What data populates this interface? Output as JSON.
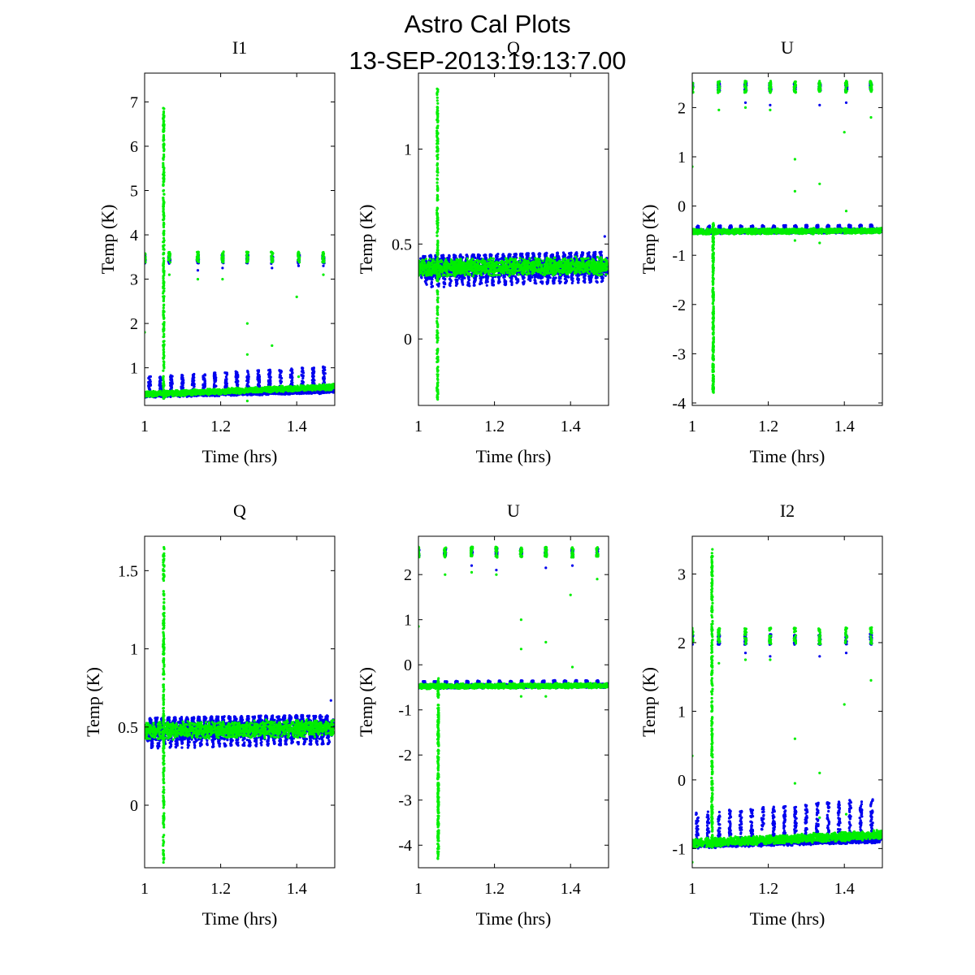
{
  "figure": {
    "title_line1": "Astro Cal Plots",
    "title_line2": "13-SEP-2013:19:13:7.00"
  },
  "colors": {
    "blue": "#0000ee",
    "green": "#00ee00",
    "axis": "#000000"
  },
  "chart_data": [
    {
      "type": "scatter",
      "title": "I1",
      "xlabel": "Time (hrs)",
      "ylabel": "Temp (K)",
      "xlim": [
        1.0,
        1.5
      ],
      "ylim": [
        0.15,
        7.65
      ],
      "xticks": [
        1,
        1.2,
        1.4
      ],
      "xtick_labels": [
        "1",
        "1.2",
        "1.4"
      ],
      "yticks": [
        1,
        2,
        3,
        4,
        5,
        6,
        7
      ],
      "ytick_labels": [
        "1",
        "2",
        "3",
        "4",
        "5",
        "6",
        "7"
      ],
      "legend": "none",
      "grid": false,
      "series": [
        {
          "color": "blue",
          "baseline": {
            "start": 0.38,
            "end": 0.48,
            "spread": 0.06
          },
          "bursts": {
            "start": 1.013,
            "interval": 0.0287,
            "count": 17,
            "height_start": 0.8,
            "height_end": 1.04
          },
          "cal_clusters": {
            "times": [
              1.0,
              1.065,
              1.14,
              1.205,
              1.27,
              1.335,
              1.405,
              1.47
            ],
            "level": 3.45,
            "spread": 0.1
          },
          "outliers": [
            [
              1.14,
              3.2
            ],
            [
              1.205,
              3.25
            ],
            [
              1.335,
              3.25
            ],
            [
              1.405,
              3.3
            ],
            [
              1.47,
              3.3
            ]
          ]
        },
        {
          "color": "green",
          "baseline": {
            "start": 0.4,
            "end": 0.57,
            "spread": 0.07
          },
          "spike": {
            "x": 1.05,
            "min": 0.3,
            "max": 6.9
          },
          "cal_clusters": {
            "times": [
              1.0,
              1.065,
              1.14,
              1.205,
              1.27,
              1.335,
              1.405,
              1.47
            ],
            "level": 3.5,
            "spread": 0.12
          },
          "outliers": [
            [
              1.0,
              1.8
            ],
            [
              1.065,
              3.1
            ],
            [
              1.14,
              3.0
            ],
            [
              1.205,
              3.0
            ],
            [
              1.27,
              2.0
            ],
            [
              1.27,
              1.3
            ],
            [
              1.335,
              1.5
            ],
            [
              1.4,
              2.6
            ],
            [
              1.405,
              0.8
            ],
            [
              1.27,
              0.25
            ],
            [
              1.47,
              3.1
            ]
          ]
        }
      ]
    },
    {
      "type": "scatter",
      "title": "Q",
      "xlabel": "Time (hrs)",
      "ylabel": "Temp (K)",
      "xlim": [
        1.0,
        1.5
      ],
      "ylim": [
        -0.35,
        1.4
      ],
      "xticks": [
        1,
        1.2,
        1.4
      ],
      "xtick_labels": [
        "1",
        "1.2",
        "1.4"
      ],
      "yticks": [
        0,
        0.5,
        1
      ],
      "ytick_labels": [
        "0",
        "0.5",
        "1"
      ],
      "legend": "none",
      "grid": false,
      "series": [
        {
          "color": "blue",
          "baseline": {
            "start": 0.37,
            "end": 0.38,
            "spread": 0.06
          },
          "bursts": {
            "start": 1.015,
            "interval": 0.016,
            "count": 30,
            "height_start": 0.44,
            "height_end": 0.46
          },
          "dips": {
            "start": 1.02,
            "interval": 0.016,
            "count": 30,
            "depth_start": 0.27,
            "depth_end": 0.3
          },
          "outliers": [
            [
              1.49,
              0.54
            ]
          ]
        },
        {
          "color": "green",
          "baseline": {
            "start": 0.375,
            "end": 0.385,
            "spread": 0.05
          },
          "spike": {
            "x": 1.05,
            "min": -0.33,
            "max": 1.33
          },
          "outliers": []
        }
      ]
    },
    {
      "type": "scatter",
      "title": "U",
      "xlabel": "Time (hrs)",
      "ylabel": "Temp (K)",
      "xlim": [
        1.0,
        1.5
      ],
      "ylim": [
        -4.05,
        2.7
      ],
      "xticks": [
        1,
        1.2,
        1.4
      ],
      "xtick_labels": [
        "1",
        "1.2",
        "1.4"
      ],
      "yticks": [
        -4,
        -3,
        -2,
        -1,
        0,
        1,
        2
      ],
      "ytick_labels": [
        "-4",
        "-3",
        "-2",
        "-1",
        "0",
        "1",
        "2"
      ],
      "legend": "none",
      "grid": false,
      "series": [
        {
          "color": "blue",
          "baseline": {
            "start": -0.52,
            "end": -0.5,
            "spread": 0.05
          },
          "bursts": {
            "start": 1.015,
            "interval": 0.0285,
            "count": 17,
            "height_start": -0.4,
            "height_end": -0.38
          },
          "cal_clusters": {
            "times": [
              1.0,
              1.07,
              1.14,
              1.205,
              1.27,
              1.335,
              1.405,
              1.47
            ],
            "level": 2.42,
            "spread": 0.08
          },
          "outliers": [
            [
              1.14,
              2.1
            ],
            [
              1.205,
              2.05
            ],
            [
              1.335,
              2.05
            ],
            [
              1.405,
              2.1
            ]
          ]
        },
        {
          "color": "green",
          "baseline": {
            "start": -0.52,
            "end": -0.5,
            "spread": 0.06
          },
          "spike": {
            "x": 1.055,
            "min": -3.8,
            "max": -0.35
          },
          "cal_clusters": {
            "times": [
              1.0,
              1.07,
              1.14,
              1.205,
              1.27,
              1.335,
              1.405,
              1.47
            ],
            "level": 2.42,
            "spread": 0.12
          },
          "outliers": [
            [
              1.0,
              0.8
            ],
            [
              1.07,
              1.95
            ],
            [
              1.14,
              2.0
            ],
            [
              1.205,
              1.95
            ],
            [
              1.27,
              0.95
            ],
            [
              1.27,
              0.3
            ],
            [
              1.335,
              0.45
            ],
            [
              1.4,
              1.5
            ],
            [
              1.405,
              -0.1
            ],
            [
              1.47,
              1.8
            ],
            [
              1.335,
              -0.75
            ],
            [
              1.27,
              -0.7
            ]
          ]
        }
      ]
    },
    {
      "type": "scatter",
      "title": "Q",
      "xlabel": "Time (hrs)",
      "ylabel": "Temp (K)",
      "xlim": [
        1.0,
        1.5
      ],
      "ylim": [
        -0.4,
        1.72
      ],
      "xticks": [
        1,
        1.2,
        1.4
      ],
      "xtick_labels": [
        "1",
        "1.2",
        "1.4"
      ],
      "yticks": [
        0,
        0.5,
        1,
        1.5
      ],
      "ytick_labels": [
        "0",
        "0.5",
        "1",
        "1.5"
      ],
      "legend": "none",
      "grid": false,
      "series": [
        {
          "color": "blue",
          "baseline": {
            "start": 0.47,
            "end": 0.49,
            "spread": 0.07
          },
          "bursts": {
            "start": 1.015,
            "interval": 0.016,
            "count": 30,
            "height_start": 0.56,
            "height_end": 0.58
          },
          "dips": {
            "start": 1.02,
            "interval": 0.016,
            "count": 30,
            "depth_start": 0.36,
            "depth_end": 0.39
          },
          "outliers": [
            [
              1.49,
              0.67
            ]
          ]
        },
        {
          "color": "green",
          "baseline": {
            "start": 0.475,
            "end": 0.495,
            "spread": 0.06
          },
          "spike": {
            "x": 1.05,
            "min": -0.37,
            "max": 1.65
          },
          "outliers": []
        }
      ]
    },
    {
      "type": "scatter",
      "title": "U",
      "xlabel": "Time (hrs)",
      "ylabel": "Temp (K)",
      "xlim": [
        1.0,
        1.5
      ],
      "ylim": [
        -4.5,
        2.85
      ],
      "xticks": [
        1,
        1.2,
        1.4
      ],
      "xtick_labels": [
        "1",
        "1.2",
        "1.4"
      ],
      "yticks": [
        -4,
        -3,
        -2,
        -1,
        0,
        1,
        2
      ],
      "ytick_labels": [
        "-4",
        "-3",
        "-2",
        "-1",
        "0",
        "1",
        "2"
      ],
      "legend": "none",
      "grid": false,
      "series": [
        {
          "color": "blue",
          "baseline": {
            "start": -0.48,
            "end": -0.46,
            "spread": 0.05
          },
          "bursts": {
            "start": 1.015,
            "interval": 0.0285,
            "count": 17,
            "height_start": -0.36,
            "height_end": -0.34
          },
          "cal_clusters": {
            "times": [
              1.0,
              1.07,
              1.14,
              1.205,
              1.27,
              1.335,
              1.405,
              1.47
            ],
            "level": 2.5,
            "spread": 0.08
          },
          "outliers": [
            [
              1.14,
              2.2
            ],
            [
              1.205,
              2.1
            ],
            [
              1.335,
              2.15
            ],
            [
              1.405,
              2.2
            ]
          ]
        },
        {
          "color": "green",
          "baseline": {
            "start": -0.48,
            "end": -0.46,
            "spread": 0.06
          },
          "spike": {
            "x": 1.052,
            "min": -4.3,
            "max": -0.3
          },
          "cal_clusters": {
            "times": [
              1.0,
              1.07,
              1.14,
              1.205,
              1.27,
              1.335,
              1.405,
              1.47
            ],
            "level": 2.5,
            "spread": 0.12
          },
          "outliers": [
            [
              1.0,
              0.85
            ],
            [
              1.07,
              2.0
            ],
            [
              1.14,
              2.05
            ],
            [
              1.205,
              2.0
            ],
            [
              1.27,
              1.0
            ],
            [
              1.27,
              0.35
            ],
            [
              1.335,
              0.5
            ],
            [
              1.4,
              1.55
            ],
            [
              1.405,
              -0.05
            ],
            [
              1.47,
              1.9
            ],
            [
              1.335,
              -0.7
            ],
            [
              1.27,
              -0.7
            ]
          ]
        }
      ]
    },
    {
      "type": "scatter",
      "title": "I2",
      "xlabel": "Time (hrs)",
      "ylabel": "Temp (K)",
      "xlim": [
        1.0,
        1.5
      ],
      "ylim": [
        -1.28,
        3.55
      ],
      "xticks": [
        1,
        1.2,
        1.4
      ],
      "xtick_labels": [
        "1",
        "1.2",
        "1.4"
      ],
      "yticks": [
        -1,
        0,
        1,
        2,
        3
      ],
      "ytick_labels": [
        "-1",
        "0",
        "1",
        "2",
        "3"
      ],
      "legend": "none",
      "grid": false,
      "series": [
        {
          "color": "blue",
          "baseline": {
            "start": -0.95,
            "end": -0.87,
            "spread": 0.05
          },
          "bursts": {
            "start": 1.013,
            "interval": 0.0287,
            "count": 17,
            "height_start": -0.48,
            "height_end": -0.25
          },
          "cal_clusters": {
            "times": [
              1.0,
              1.07,
              1.14,
              1.205,
              1.27,
              1.335,
              1.405,
              1.47
            ],
            "level": 2.05,
            "spread": 0.08
          },
          "outliers": [
            [
              1.14,
              1.85
            ],
            [
              1.205,
              1.8
            ],
            [
              1.335,
              1.8
            ],
            [
              1.405,
              1.85
            ]
          ]
        },
        {
          "color": "green",
          "baseline": {
            "start": -0.92,
            "end": -0.8,
            "spread": 0.07
          },
          "spike": {
            "x": 1.052,
            "min": -1.0,
            "max": 3.4
          },
          "cal_clusters": {
            "times": [
              1.0,
              1.07,
              1.14,
              1.205,
              1.27,
              1.335,
              1.405,
              1.47
            ],
            "level": 2.1,
            "spread": 0.12
          },
          "outliers": [
            [
              1.0,
              0.35
            ],
            [
              1.07,
              1.7
            ],
            [
              1.14,
              1.75
            ],
            [
              1.205,
              1.75
            ],
            [
              1.27,
              0.6
            ],
            [
              1.27,
              -0.05
            ],
            [
              1.335,
              0.1
            ],
            [
              1.4,
              1.1
            ],
            [
              1.405,
              -0.5
            ],
            [
              1.47,
              1.45
            ],
            [
              1.0,
              -1.2
            ],
            [
              1.335,
              -0.55
            ]
          ]
        }
      ]
    }
  ]
}
